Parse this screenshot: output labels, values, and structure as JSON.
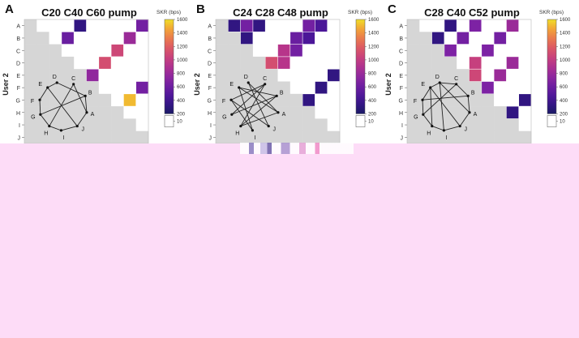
{
  "panels": [
    {
      "panel_label": "A",
      "title": "C20 C40 C60 pump",
      "nodes": [
        "A",
        "B",
        "C",
        "D",
        "E",
        "F",
        "G",
        "H",
        "I",
        "J"
      ],
      "topology_edges": [
        [
          "D",
          "B"
        ],
        [
          "B",
          "A"
        ],
        [
          "A",
          "J"
        ],
        [
          "J",
          "I"
        ],
        [
          "I",
          "H"
        ],
        [
          "H",
          "G"
        ],
        [
          "G",
          "F"
        ],
        [
          "F",
          "E"
        ],
        [
          "E",
          "D"
        ],
        [
          "C",
          "A"
        ],
        [
          "C",
          "H"
        ],
        [
          "B",
          "G"
        ],
        [
          "E",
          "J"
        ]
      ]
    },
    {
      "panel_label": "B",
      "title": "C24 C28 C48 pump",
      "nodes": [
        "A",
        "B",
        "C",
        "D",
        "E",
        "F",
        "G",
        "H",
        "I",
        "J"
      ],
      "topology_edges": [
        [
          "D",
          "J"
        ],
        [
          "D",
          "A"
        ],
        [
          "C",
          "F"
        ],
        [
          "C",
          "G"
        ],
        [
          "B",
          "G"
        ],
        [
          "B",
          "H"
        ],
        [
          "E",
          "A"
        ],
        [
          "E",
          "I"
        ],
        [
          "F",
          "J"
        ],
        [
          "H",
          "A"
        ],
        [
          "I",
          "F"
        ],
        [
          "E",
          "B"
        ],
        [
          "C",
          "H"
        ]
      ]
    },
    {
      "panel_label": "C",
      "title": "C28 C40 C52 pump",
      "nodes": [
        "A",
        "B",
        "C",
        "D",
        "E",
        "F",
        "G",
        "H",
        "I",
        "J"
      ],
      "topology_edges": [
        [
          "D",
          "C"
        ],
        [
          "C",
          "B"
        ],
        [
          "B",
          "A"
        ],
        [
          "A",
          "J"
        ],
        [
          "J",
          "I"
        ],
        [
          "I",
          "H"
        ],
        [
          "H",
          "G"
        ],
        [
          "G",
          "F"
        ],
        [
          "F",
          "E"
        ],
        [
          "E",
          "D"
        ],
        [
          "D",
          "A"
        ],
        [
          "C",
          "G"
        ],
        [
          "E",
          "J"
        ],
        [
          "B",
          "F"
        ],
        [
          "D",
          "I"
        ],
        [
          "E",
          "H"
        ]
      ]
    }
  ],
  "colorbar": {
    "label": "SKR (bps)",
    "ticks": [
      "1600",
      "1400",
      "1200",
      "1000",
      "800",
      "600",
      "400",
      "200",
      "10"
    ]
  },
  "chart_data": [
    {
      "type": "heatmap",
      "title": "C20 C40 C60 pump",
      "xlabel": "",
      "ylabel": "User 2",
      "categories": [
        "A",
        "B",
        "C",
        "D",
        "E",
        "F",
        "G",
        "H",
        "I",
        "J"
      ],
      "value_range": [
        10,
        1600
      ],
      "cells": [
        {
          "row": "A",
          "col": "E",
          "value": 150
        },
        {
          "row": "A",
          "col": "J",
          "value": 500
        },
        {
          "row": "B",
          "col": "D",
          "value": 450
        },
        {
          "row": "B",
          "col": "I",
          "value": 700
        },
        {
          "row": "C",
          "col": "H",
          "value": 1000
        },
        {
          "row": "D",
          "col": "G",
          "value": 1050
        },
        {
          "row": "E",
          "col": "F",
          "value": 650
        },
        {
          "row": "F",
          "col": "J",
          "value": 500
        },
        {
          "row": "G",
          "col": "I",
          "value": 1500
        }
      ]
    },
    {
      "type": "heatmap",
      "title": "C24 C28 C48 pump",
      "xlabel": "",
      "ylabel": "User 2",
      "categories": [
        "A",
        "B",
        "C",
        "D",
        "E",
        "F",
        "G",
        "H",
        "I",
        "J"
      ],
      "value_range": [
        10,
        1600
      ],
      "cells": [
        {
          "row": "A",
          "col": "B",
          "value": 150
        },
        {
          "row": "A",
          "col": "C",
          "value": 500
        },
        {
          "row": "A",
          "col": "D",
          "value": 150
        },
        {
          "row": "A",
          "col": "H",
          "value": 500
        },
        {
          "row": "A",
          "col": "I",
          "value": 300
        },
        {
          "row": "B",
          "col": "C",
          "value": 150
        },
        {
          "row": "B",
          "col": "G",
          "value": 450
        },
        {
          "row": "B",
          "col": "H",
          "value": 300
        },
        {
          "row": "C",
          "col": "F",
          "value": 850
        },
        {
          "row": "C",
          "col": "G",
          "value": 500
        },
        {
          "row": "D",
          "col": "E",
          "value": 1050
        },
        {
          "row": "D",
          "col": "F",
          "value": 850
        },
        {
          "row": "E",
          "col": "J",
          "value": 150
        },
        {
          "row": "F",
          "col": "I",
          "value": 150
        },
        {
          "row": "G",
          "col": "H",
          "value": 150
        }
      ]
    },
    {
      "type": "heatmap",
      "title": "C28 C40 C52 pump",
      "xlabel": "",
      "ylabel": "User 2",
      "categories": [
        "A",
        "B",
        "C",
        "D",
        "E",
        "F",
        "G",
        "H",
        "I",
        "J"
      ],
      "value_range": [
        10,
        1600
      ],
      "cells": [
        {
          "row": "A",
          "col": "D",
          "value": 150
        },
        {
          "row": "A",
          "col": "F",
          "value": 550
        },
        {
          "row": "A",
          "col": "I",
          "value": 700
        },
        {
          "row": "B",
          "col": "C",
          "value": 150
        },
        {
          "row": "B",
          "col": "E",
          "value": 500
        },
        {
          "row": "B",
          "col": "H",
          "value": 500
        },
        {
          "row": "C",
          "col": "D",
          "value": 550
        },
        {
          "row": "C",
          "col": "G",
          "value": 550
        },
        {
          "row": "D",
          "col": "F",
          "value": 950
        },
        {
          "row": "D",
          "col": "I",
          "value": 700
        },
        {
          "row": "E",
          "col": "F",
          "value": 1000
        },
        {
          "row": "E",
          "col": "H",
          "value": 700
        },
        {
          "row": "F",
          "col": "G",
          "value": 550
        },
        {
          "row": "G",
          "col": "J",
          "value": 150
        },
        {
          "row": "H",
          "col": "I",
          "value": 150
        }
      ]
    }
  ]
}
